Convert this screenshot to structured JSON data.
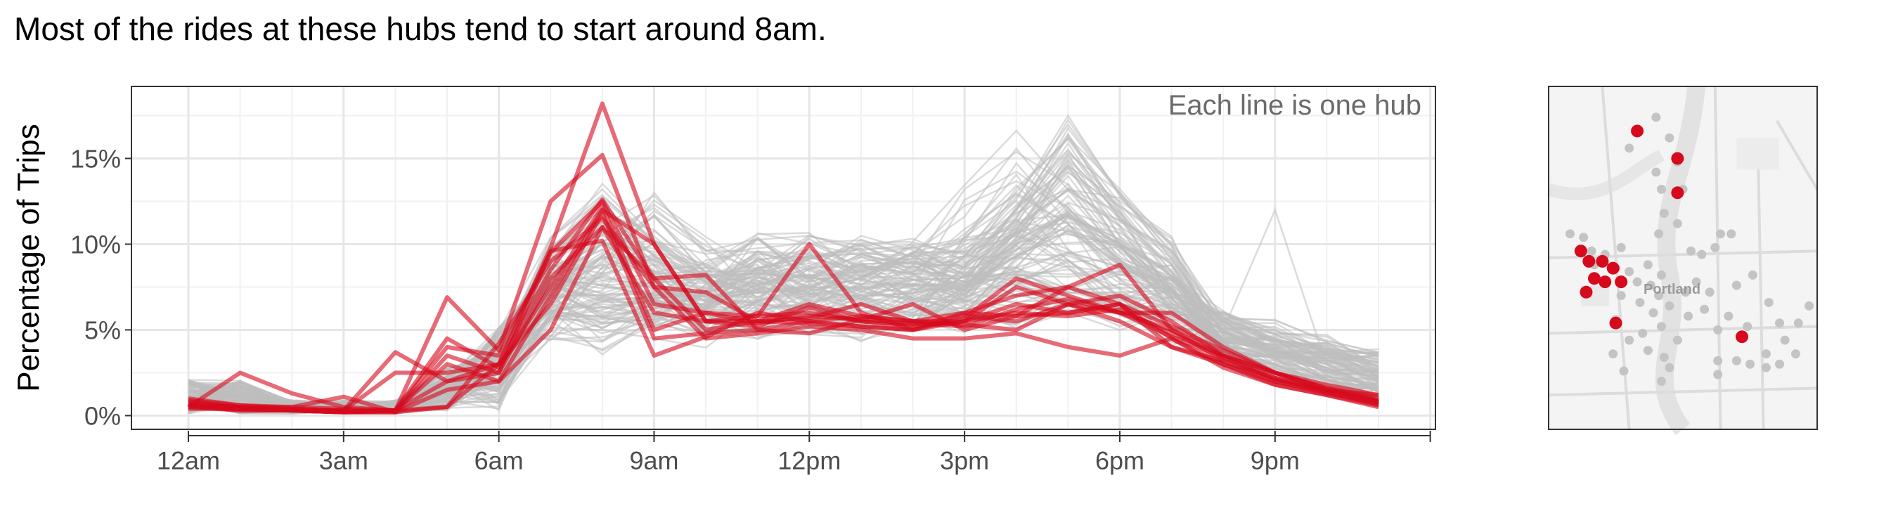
{
  "title": "Most of the rides at these hubs tend to start around 8am.",
  "annotation": "Each line is one hub",
  "map_label": "Portland",
  "colors": {
    "highlight": "#d7091d",
    "background_lines": "#bdbdbd",
    "map_points_gray": "#c4c4c4",
    "map_points_red": "#d7091d"
  },
  "chart_data": {
    "type": "line",
    "ylabel": "Percentage of Trips",
    "x": [
      0,
      1,
      2,
      3,
      4,
      5,
      6,
      7,
      8,
      9,
      10,
      11,
      12,
      13,
      14,
      15,
      16,
      17,
      18,
      19,
      20,
      21,
      22,
      23
    ],
    "x_ticks": [
      0,
      3,
      6,
      9,
      12,
      15,
      18,
      21,
      24
    ],
    "x_tick_labels": [
      "12am",
      "3am",
      "6am",
      "9am",
      "12pm",
      "3pm",
      "6pm",
      "9pm",
      ""
    ],
    "y_ticks": [
      0,
      5,
      10,
      15
    ],
    "y_tick_labels": [
      "0%",
      "5%",
      "10%",
      "15%"
    ],
    "xlim": [
      -1.1,
      24.1
    ],
    "ylim": [
      -0.8,
      19.2
    ],
    "grid": true,
    "highlighted_series": [
      {
        "values": [
          1.0,
          0.6,
          0.5,
          0.4,
          0.3,
          0.5,
          3.0,
          9.8,
          18.2,
          10.0,
          5.5,
          5.2,
          6.3,
          5.5,
          5.3,
          5.8,
          5.5,
          6.5,
          7.0,
          5.5,
          3.5,
          2.5,
          1.8,
          1.2
        ]
      },
      {
        "values": [
          0.5,
          2.5,
          1.3,
          0.5,
          0.3,
          6.9,
          3.8,
          12.5,
          15.2,
          7.5,
          7.2,
          5.5,
          5.4,
          5.2,
          5.0,
          5.5,
          6.5,
          6.0,
          6.5,
          4.5,
          3.0,
          2.0,
          1.5,
          0.8
        ]
      },
      {
        "values": [
          0.6,
          0.3,
          0.3,
          0.2,
          0.3,
          4.0,
          3.5,
          9.5,
          12.5,
          6.5,
          6.0,
          5.8,
          10.0,
          6.0,
          5.0,
          6.0,
          5.8,
          7.5,
          8.8,
          5.0,
          3.5,
          2.5,
          1.6,
          0.9
        ]
      },
      {
        "values": [
          0.8,
          0.5,
          0.3,
          0.3,
          3.7,
          2.0,
          2.5,
          8.0,
          11.0,
          8.0,
          8.2,
          5.0,
          4.8,
          5.6,
          6.5,
          5.0,
          5.8,
          6.0,
          6.5,
          4.0,
          3.2,
          2.2,
          1.4,
          0.7
        ]
      },
      {
        "values": [
          0.4,
          0.4,
          0.3,
          0.2,
          0.3,
          3.0,
          2.0,
          7.0,
          12.0,
          10.0,
          5.5,
          5.8,
          6.0,
          5.5,
          5.2,
          5.5,
          7.5,
          6.5,
          5.5,
          4.0,
          3.0,
          1.8,
          1.2,
          0.6
        ]
      },
      {
        "values": [
          0.7,
          0.5,
          0.5,
          1.1,
          0.2,
          0.5,
          4.2,
          9.0,
          11.5,
          7.5,
          4.5,
          4.8,
          5.2,
          5.0,
          4.5,
          4.5,
          4.8,
          4.0,
          3.5,
          4.5,
          2.8,
          1.8,
          1.2,
          0.5
        ]
      },
      {
        "values": [
          0.5,
          0.4,
          0.3,
          0.2,
          0.2,
          3.5,
          2.5,
          9.6,
          10.2,
          3.5,
          4.6,
          6.0,
          5.5,
          5.8,
          5.5,
          5.3,
          5.0,
          6.5,
          6.0,
          6.0,
          4.0,
          2.5,
          1.5,
          1.2
        ]
      },
      {
        "values": [
          0.6,
          0.5,
          0.4,
          0.3,
          2.5,
          2.5,
          3.0,
          8.5,
          12.6,
          8.0,
          5.0,
          5.5,
          5.7,
          6.5,
          5.5,
          5.5,
          6.0,
          5.8,
          6.2,
          4.8,
          3.5,
          2.2,
          1.5,
          0.9
        ]
      },
      {
        "values": [
          0.9,
          0.6,
          0.4,
          0.3,
          0.3,
          2.0,
          3.0,
          6.5,
          11.8,
          4.5,
          4.8,
          5.0,
          5.5,
          5.2,
          5.0,
          5.7,
          8.0,
          7.0,
          6.0,
          5.0,
          3.2,
          2.0,
          1.3,
          0.7
        ]
      },
      {
        "values": [
          0.5,
          0.3,
          0.3,
          0.2,
          0.2,
          1.5,
          2.0,
          5.0,
          11.0,
          6.0,
          5.5,
          5.5,
          6.5,
          5.8,
          5.5,
          6.0,
          7.0,
          7.5,
          6.5,
          5.2,
          3.8,
          2.5,
          1.6,
          1.0
        ]
      },
      {
        "values": [
          0.7,
          0.4,
          0.3,
          0.2,
          0.3,
          4.5,
          2.8,
          7.5,
          12.2,
          5.0,
          6.0,
          5.4,
          5.8,
          5.6,
          5.4,
          5.2,
          6.2,
          6.8,
          6.0,
          4.6,
          3.4,
          2.1,
          1.4,
          0.8
        ]
      }
    ]
  },
  "map_points": {
    "gray": [
      [
        0.4,
        0.09
      ],
      [
        0.45,
        0.15
      ],
      [
        0.3,
        0.18
      ],
      [
        0.48,
        0.22
      ],
      [
        0.4,
        0.25
      ],
      [
        0.42,
        0.3
      ],
      [
        0.5,
        0.3
      ],
      [
        0.43,
        0.37
      ],
      [
        0.48,
        0.4
      ],
      [
        0.41,
        0.43
      ],
      [
        0.08,
        0.43
      ],
      [
        0.13,
        0.44
      ],
      [
        0.16,
        0.48
      ],
      [
        0.21,
        0.49
      ],
      [
        0.27,
        0.47
      ],
      [
        0.17,
        0.52
      ],
      [
        0.25,
        0.53
      ],
      [
        0.3,
        0.54
      ],
      [
        0.37,
        0.52
      ],
      [
        0.42,
        0.55
      ],
      [
        0.53,
        0.48
      ],
      [
        0.57,
        0.49
      ],
      [
        0.62,
        0.47
      ],
      [
        0.64,
        0.43
      ],
      [
        0.68,
        0.43
      ],
      [
        0.33,
        0.57
      ],
      [
        0.38,
        0.58
      ],
      [
        0.41,
        0.61
      ],
      [
        0.45,
        0.64
      ],
      [
        0.51,
        0.6
      ],
      [
        0.27,
        0.61
      ],
      [
        0.34,
        0.63
      ],
      [
        0.39,
        0.66
      ],
      [
        0.42,
        0.7
      ],
      [
        0.35,
        0.72
      ],
      [
        0.25,
        0.68
      ],
      [
        0.3,
        0.74
      ],
      [
        0.37,
        0.77
      ],
      [
        0.43,
        0.79
      ],
      [
        0.48,
        0.74
      ],
      [
        0.24,
        0.78
      ],
      [
        0.28,
        0.83
      ],
      [
        0.55,
        0.57
      ],
      [
        0.6,
        0.6
      ],
      [
        0.76,
        0.55
      ],
      [
        0.82,
        0.63
      ],
      [
        0.67,
        0.67
      ],
      [
        0.63,
        0.71
      ],
      [
        0.74,
        0.7
      ],
      [
        0.86,
        0.69
      ],
      [
        0.93,
        0.69
      ],
      [
        0.97,
        0.64
      ],
      [
        0.88,
        0.74
      ],
      [
        0.92,
        0.78
      ],
      [
        0.81,
        0.78
      ],
      [
        0.63,
        0.8
      ],
      [
        0.7,
        0.8
      ],
      [
        0.75,
        0.81
      ],
      [
        0.81,
        0.82
      ],
      [
        0.86,
        0.81
      ],
      [
        0.63,
        0.84
      ],
      [
        0.42,
        0.86
      ],
      [
        0.45,
        0.82
      ],
      [
        0.7,
        0.58
      ],
      [
        0.58,
        0.65
      ],
      [
        0.52,
        0.67
      ]
    ],
    "red": [
      [
        0.33,
        0.13
      ],
      [
        0.48,
        0.21
      ],
      [
        0.48,
        0.31
      ],
      [
        0.12,
        0.48
      ],
      [
        0.15,
        0.51
      ],
      [
        0.2,
        0.51
      ],
      [
        0.24,
        0.53
      ],
      [
        0.17,
        0.56
      ],
      [
        0.21,
        0.57
      ],
      [
        0.27,
        0.57
      ],
      [
        0.14,
        0.6
      ],
      [
        0.25,
        0.69
      ],
      [
        0.72,
        0.73
      ]
    ]
  }
}
